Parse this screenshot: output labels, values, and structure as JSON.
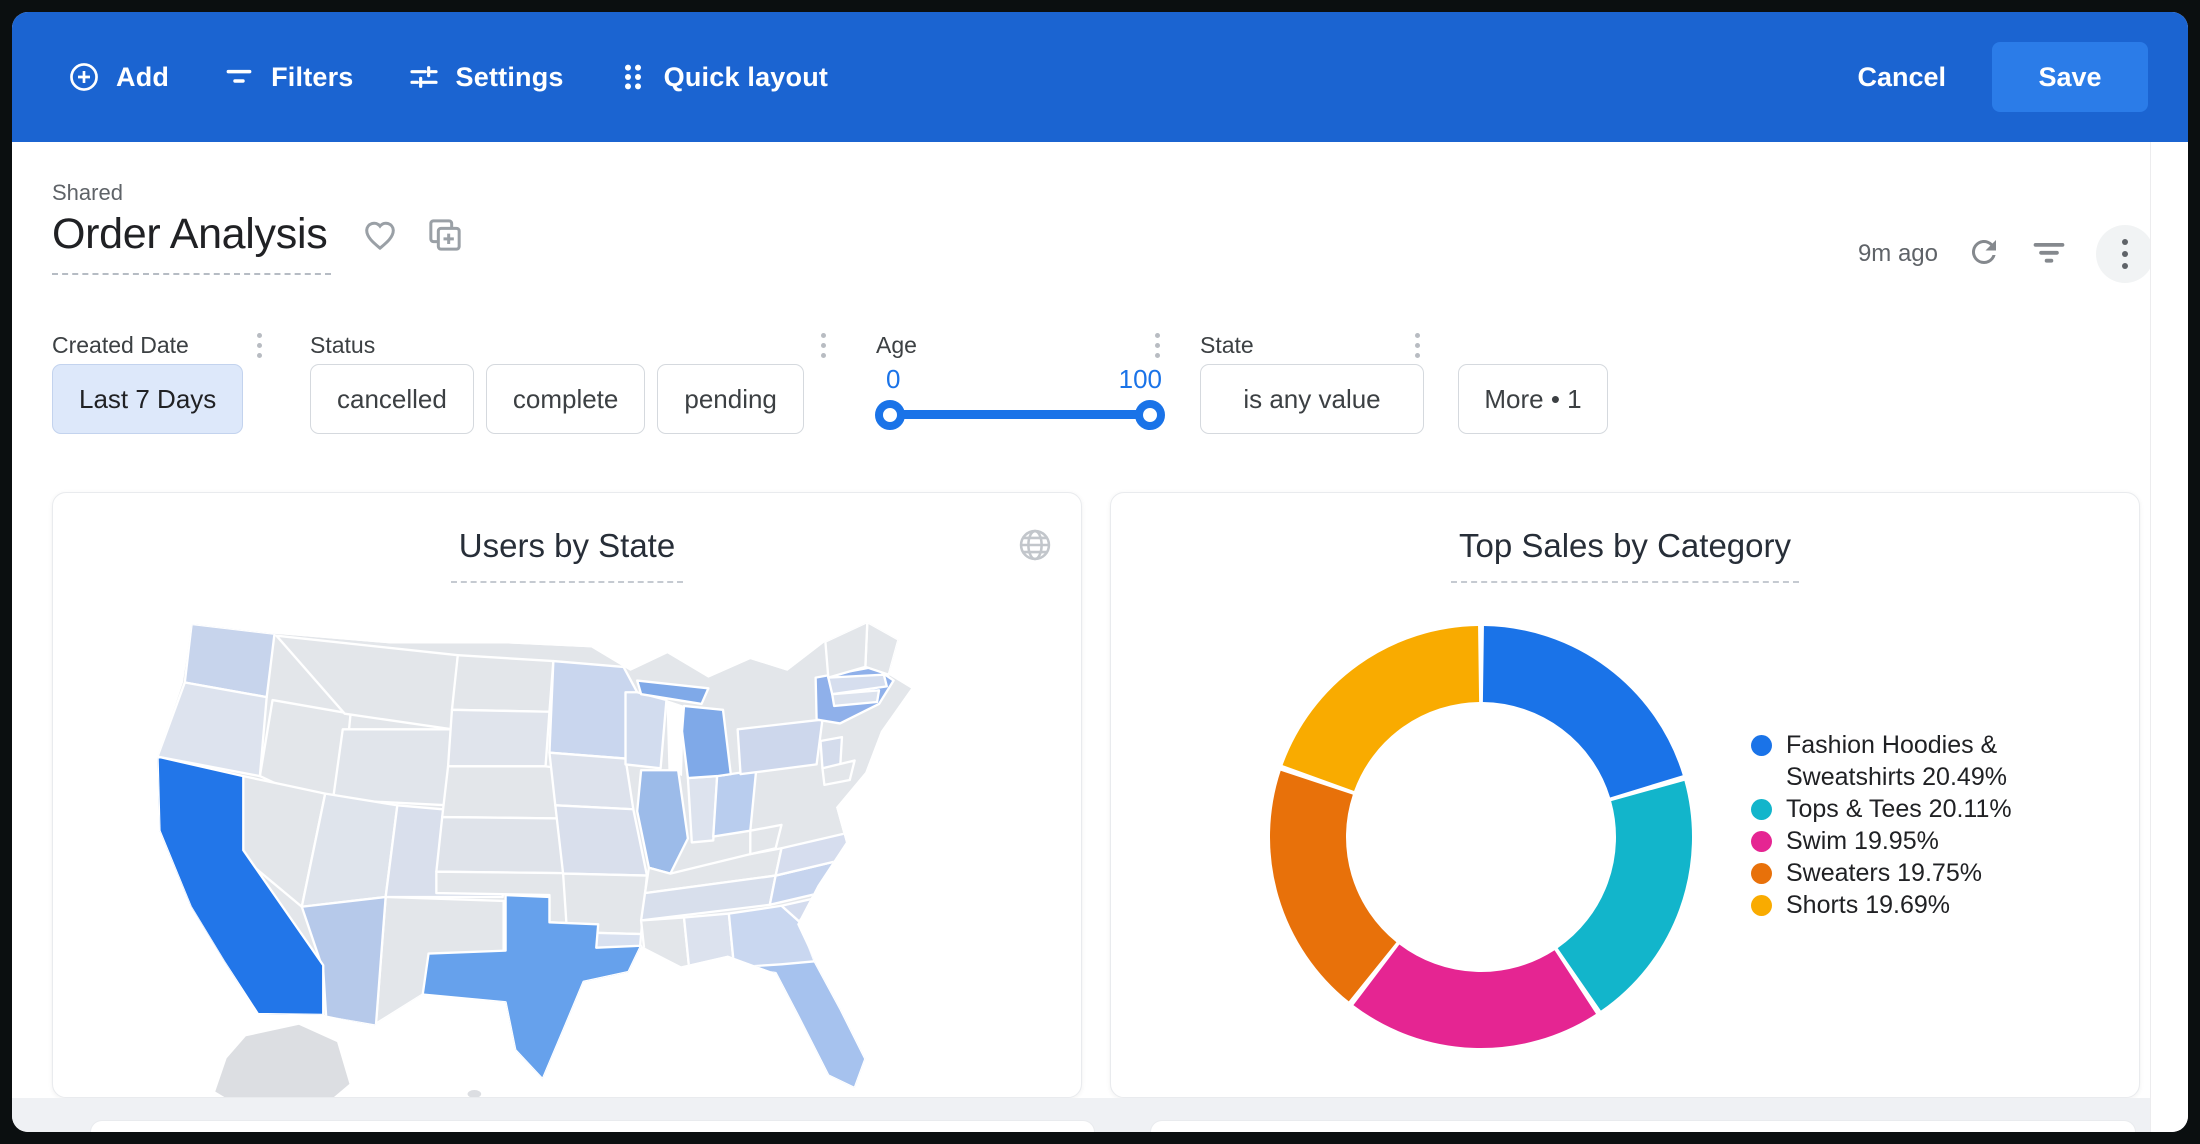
{
  "toolbar": {
    "add_label": "Add",
    "filters_label": "Filters",
    "settings_label": "Settings",
    "quick_layout_label": "Quick layout",
    "cancel_label": "Cancel",
    "save_label": "Save",
    "bar_color": "#1b64d1",
    "save_color": "#2b7ce8"
  },
  "header": {
    "breadcrumb": "Shared",
    "title": "Order Analysis",
    "updated": "9m ago"
  },
  "filters": {
    "sections": [
      {
        "label": "Created Date",
        "type": "chips",
        "chips": [
          {
            "text": "Last 7 Days",
            "selected": true
          }
        ]
      },
      {
        "label": "Status",
        "type": "chips",
        "chips": [
          {
            "text": "cancelled"
          },
          {
            "text": "complete"
          },
          {
            "text": "pending"
          }
        ]
      },
      {
        "label": "Age",
        "type": "range",
        "min": "0",
        "max": "100"
      },
      {
        "label": "State",
        "type": "chips",
        "chips": [
          {
            "text": "is any value"
          }
        ]
      },
      {
        "label": "",
        "type": "chips",
        "chips": [
          {
            "text": "More • 1"
          }
        ]
      }
    ],
    "accent": "#1a73e8"
  },
  "cards": {
    "map_title": "Users by State",
    "donut_title": "Top Sales by Category"
  },
  "chart_data": [
    {
      "type": "choropleth-map",
      "title": "Users by State",
      "region": "US states",
      "encoding": "darker blue = more users",
      "base_color": "#e3e6ea",
      "alaska_color": "#dcdee2",
      "state_colors": {
        "CA": "#2276e9",
        "TX": "#66a1ec",
        "MI": "#7fa9e8",
        "NY": "#8fb0ea",
        "IL": "#9cbbe9",
        "FL": "#a6c2ee",
        "AZ": "#b6c9ea",
        "OH": "#b9cdee",
        "NC": "#c6d4ee",
        "WA": "#c7d4ec",
        "MN": "#c9d6ee",
        "GA": "#c9d7f0",
        "WI": "#d2dcee",
        "PA": "#cdd7ec",
        "NJ": "#d4dcec",
        "SC": "#d4dcee",
        "MA": "#d6deee",
        "VA": "#d6ddee",
        "TN": "#d8dfec",
        "LA": "#d9e1f0",
        "CO": "#d9dfec",
        "MO": "#d9dfec",
        "AL": "#dce2ee",
        "IA": "#dde2ec",
        "OR": "#dde3ee",
        "IN": "#dde3ee",
        "CT": "#dde3ee",
        "UT": "#dfe4ec",
        "KS": "#dfe3ea",
        "SD": "#e0e4ec",
        "WY": "#e1e5eb"
      }
    },
    {
      "type": "pie",
      "donut": true,
      "title": "Top Sales by Category",
      "legend_position": "right",
      "series": [
        {
          "name": "Fashion Hoodies & Sweatshirts",
          "value": 20.49
        },
        {
          "name": "Tops & Tees",
          "value": 20.11
        },
        {
          "name": "Swim",
          "value": 19.95
        },
        {
          "name": "Sweaters",
          "value": 19.75
        },
        {
          "name": "Shorts",
          "value": 19.69
        }
      ],
      "colors": [
        "#1a73e8",
        "#12b5cb",
        "#e52592",
        "#e8710a",
        "#f9ab00"
      ]
    }
  ]
}
